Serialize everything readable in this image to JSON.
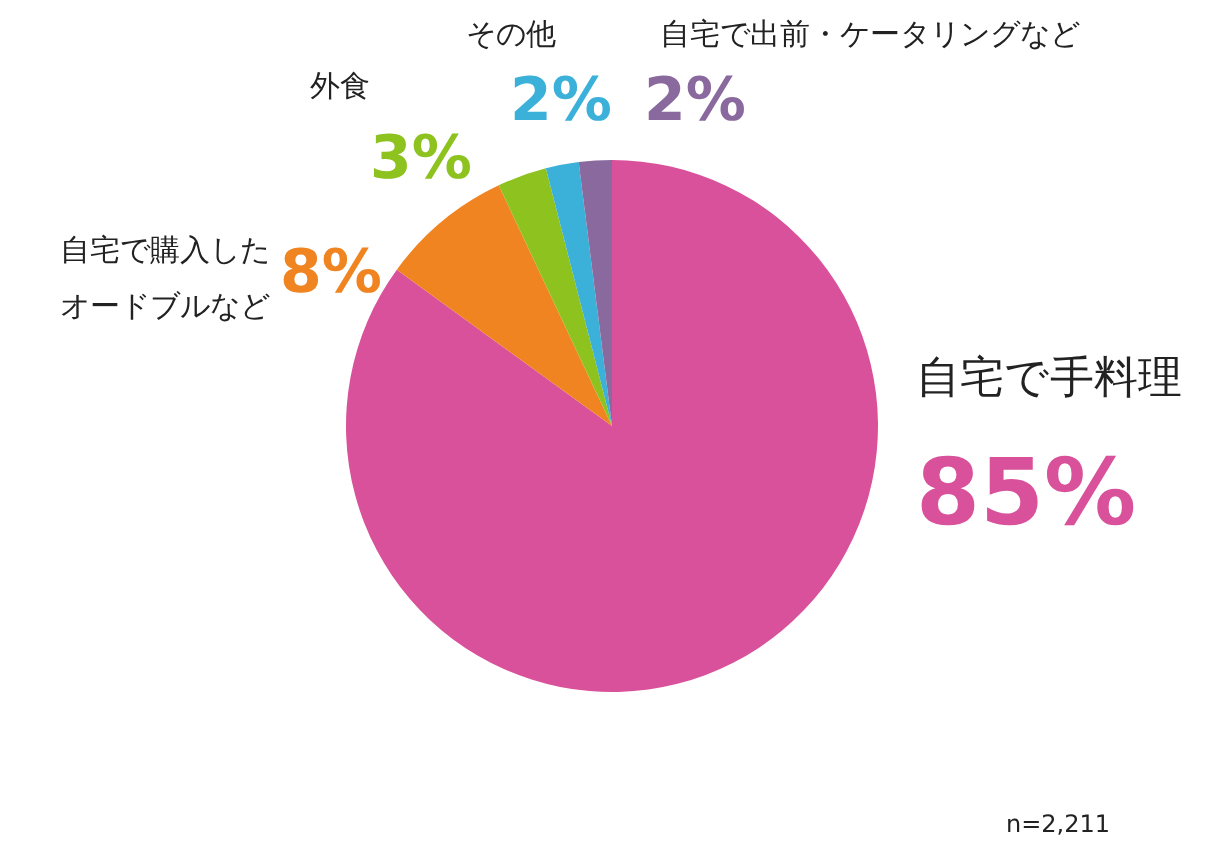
{
  "chart_data": {
    "type": "pie",
    "categories": [
      "自宅で手料理",
      "自宅で購入したオードブルなど",
      "外食",
      "その他",
      "自宅で出前・ケータリングなど"
    ],
    "values": [
      85,
      8,
      3,
      2,
      2
    ],
    "value_labels": [
      "85%",
      "8%",
      "3%",
      "2%",
      "2%"
    ],
    "colors": [
      "#d9519a",
      "#f08420",
      "#8dc21f",
      "#3bb1d9",
      "#8a6a9e"
    ],
    "annotations": [
      "n=2,211"
    ],
    "legend": false
  }
}
